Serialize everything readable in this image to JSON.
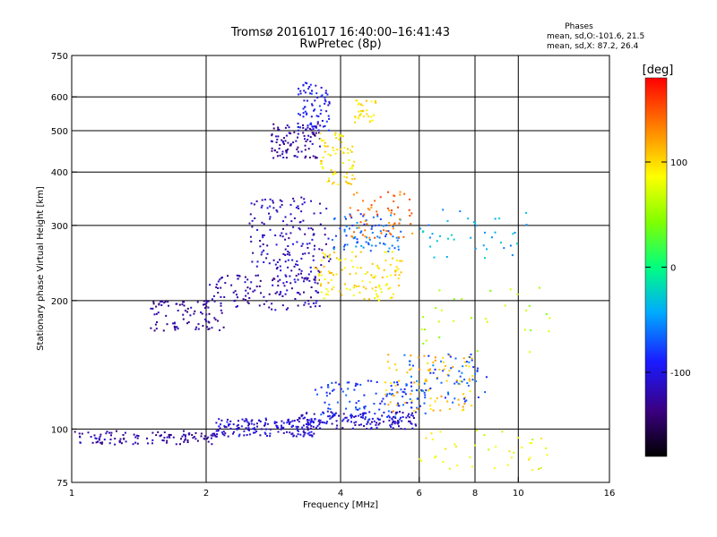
{
  "chart_data": {
    "type": "scatter",
    "title_line1": "Tromsø 20161017 16:40:00–16:41:43",
    "title_line2": "RwPretec (8p)",
    "phases_label": "Phases",
    "phases_stats_o": "mean, sd,O:-101.6, 21.5",
    "phases_stats_x": "mean, sd,X:  87.2, 26.4",
    "xlabel": "Frequency [MHz]",
    "ylabel": "Stationary phase Virtual Height [km]",
    "x_scale": "log",
    "y_scale": "log",
    "xlim": [
      1,
      16
    ],
    "ylim": [
      75,
      750
    ],
    "x_ticks": [
      1,
      2,
      4,
      6,
      8,
      10,
      16
    ],
    "x_tick_labels": [
      "1",
      "2",
      "4",
      "6",
      "8",
      "10",
      "16"
    ],
    "y_ticks": [
      75,
      100,
      200,
      300,
      400,
      500,
      600,
      750
    ],
    "y_tick_labels": [
      "75",
      "100",
      "200",
      "300",
      "400",
      "500",
      "600",
      "750"
    ],
    "x_gridlines": [
      2,
      4,
      6,
      8,
      10
    ],
    "y_gridlines": [
      100,
      200,
      300,
      400,
      500,
      600
    ],
    "grid": true,
    "colorbar": {
      "label": "[deg]",
      "range": [
        -180,
        180
      ],
      "ticks": [
        100,
        0,
        -100
      ],
      "tick_labels": [
        "100",
        "0",
        "-100"
      ],
      "colormap": "rainbow"
    },
    "echo_clusters": [
      {
        "f": [
          0.95,
          2.1
        ],
        "h": [
          92,
          99
        ],
        "phase": -125,
        "n": 120
      },
      {
        "f": [
          2.1,
          3.6
        ],
        "h": [
          96,
          106
        ],
        "phase": -105,
        "n": 160
      },
      {
        "f": [
          3.2,
          6.0
        ],
        "h": [
          100,
          110
        ],
        "phase": -110,
        "n": 150
      },
      {
        "f": [
          3.5,
          6.2
        ],
        "h": [
          105,
          130
        ],
        "phase": -80,
        "n": 110
      },
      {
        "f": [
          5.0,
          8.0
        ],
        "h": [
          110,
          150
        ],
        "phase": 110,
        "n": 90
      },
      {
        "f": [
          5.5,
          8.5
        ],
        "h": [
          115,
          150
        ],
        "phase": -70,
        "n": 70
      },
      {
        "f": [
          1.5,
          2.2
        ],
        "h": [
          170,
          200
        ],
        "phase": -130,
        "n": 90
      },
      {
        "f": [
          2.0,
          3.6
        ],
        "h": [
          190,
          230
        ],
        "phase": -120,
        "n": 130
      },
      {
        "f": [
          2.5,
          3.8
        ],
        "h": [
          230,
          350
        ],
        "phase": -115,
        "n": 160
      },
      {
        "f": [
          3.5,
          5.5
        ],
        "h": [
          200,
          260
        ],
        "phase": 95,
        "n": 120
      },
      {
        "f": [
          3.8,
          5.5
        ],
        "h": [
          260,
          320
        ],
        "phase": -65,
        "n": 80
      },
      {
        "f": [
          4.2,
          5.8
        ],
        "h": [
          280,
          360
        ],
        "phase": 140,
        "n": 60
      },
      {
        "f": [
          2.8,
          3.6
        ],
        "h": [
          430,
          520
        ],
        "phase": -125,
        "n": 100
      },
      {
        "f": [
          3.2,
          3.8
        ],
        "h": [
          500,
          650
        ],
        "phase": -95,
        "n": 80
      },
      {
        "f": [
          3.6,
          4.3
        ],
        "h": [
          370,
          500
        ],
        "phase": 95,
        "n": 70
      },
      {
        "f": [
          4.3,
          4.8
        ],
        "h": [
          520,
          590
        ],
        "phase": 95,
        "n": 30
      },
      {
        "f": [
          6.0,
          12.0
        ],
        "h": [
          80,
          100
        ],
        "phase": 80,
        "n": 40
      },
      {
        "f": [
          6.0,
          10.5
        ],
        "h": [
          250,
          330
        ],
        "phase": -40,
        "n": 40
      },
      {
        "f": [
          6.0,
          12.0
        ],
        "h": [
          150,
          220
        ],
        "phase": 60,
        "n": 30
      }
    ]
  }
}
